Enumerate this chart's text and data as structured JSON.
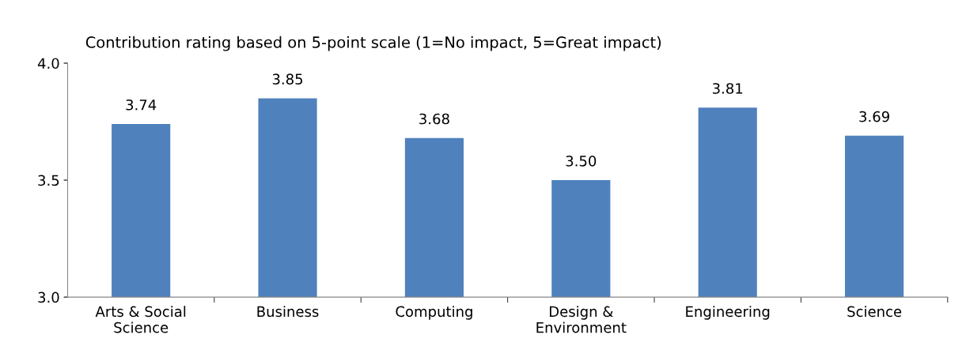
{
  "chart_data": {
    "type": "bar",
    "title": "Contribution rating based on 5-point scale (1=No impact, 5=Great impact)",
    "categories": [
      "Arts & Social\nScience",
      "Business",
      "Computing",
      "Design &\nEnvironment",
      "Engineering",
      "Science"
    ],
    "values": [
      3.74,
      3.85,
      3.68,
      3.5,
      3.81,
      3.69
    ],
    "value_labels": [
      "3.74",
      "3.85",
      "3.68",
      "3.50",
      "3.81",
      "3.69"
    ],
    "color": "#4f81bd",
    "ylim": [
      3.0,
      4.0
    ],
    "yticks": [
      {
        "value": 3.0,
        "label": "3.0"
      },
      {
        "value": 3.5,
        "label": "3.5"
      },
      {
        "value": 4.0,
        "label": "4.0"
      }
    ],
    "grid": false
  }
}
